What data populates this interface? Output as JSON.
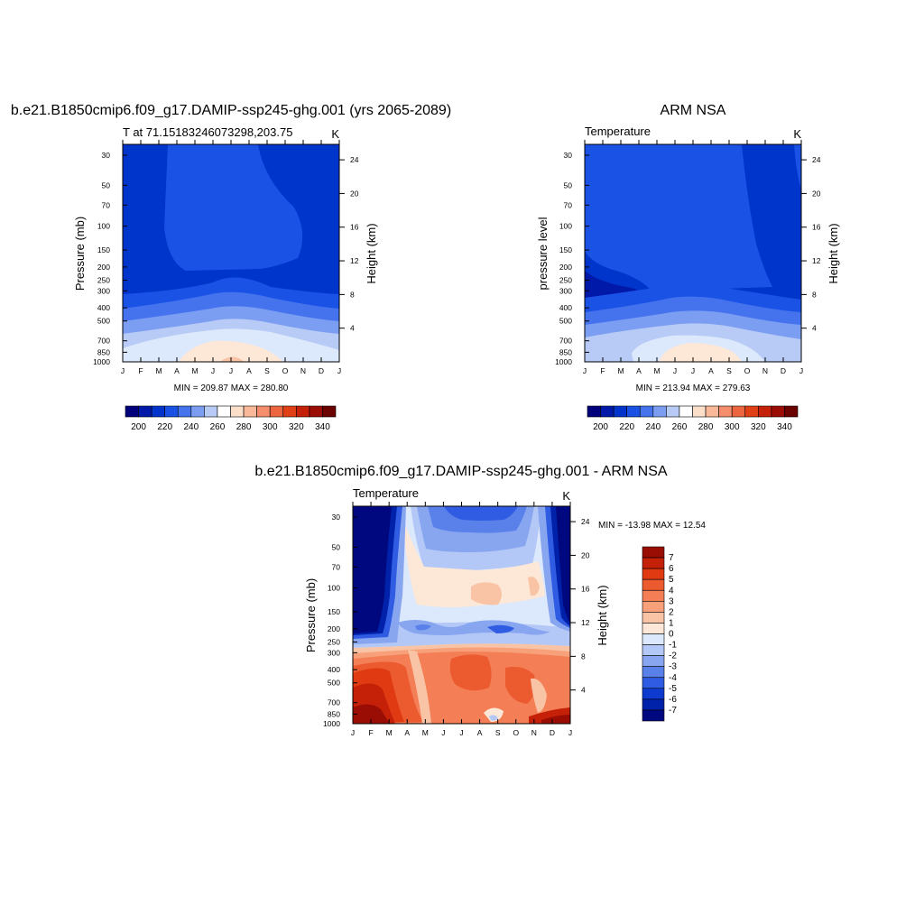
{
  "chart_data": [
    {
      "type": "heatmap",
      "title": "b.e21.B1850cmip6.f09_g17.DAMIP-ssp245-ghg.001 (yrs 2065-2089)",
      "left_label": "T at 71.15183246073298,203.75",
      "right_label": "K",
      "ylabel": "Pressure (mb)",
      "ylabel_right": "Height (km)",
      "x_ticks": [
        "J",
        "F",
        "M",
        "A",
        "M",
        "J",
        "J",
        "A",
        "S",
        "O",
        "N",
        "D",
        "J"
      ],
      "y_ticks": [
        "30",
        "50",
        "70",
        "100",
        "150",
        "200",
        "250",
        "300",
        "400",
        "500",
        "700",
        "850",
        "1000"
      ],
      "y_ticks_right": [
        "24",
        "20",
        "16",
        "12",
        "8",
        "4"
      ],
      "stats": "MIN = 209.87 MAX = 280.80",
      "colorbar_labels": [
        "200",
        "220",
        "240",
        "260",
        "280",
        "300",
        "320",
        "340"
      ],
      "colorbar_colors": [
        "#00007d",
        "#0019a8",
        "#0035cb",
        "#1a52e6",
        "#4573ee",
        "#7c9ef2",
        "#b8cbf6",
        "#ffffff",
        "#fcdfc9",
        "#f9b898",
        "#f48e6c",
        "#ec6640",
        "#df4015",
        "#c52008",
        "#9a0d05",
        "#6a0000"
      ]
    },
    {
      "type": "heatmap",
      "title": "ARM NSA",
      "left_label": "Temperature",
      "right_label": "K",
      "ylabel": "pressure level",
      "ylabel_right": "Height (km)",
      "x_ticks": [
        "J",
        "F",
        "M",
        "A",
        "M",
        "J",
        "J",
        "A",
        "S",
        "O",
        "N",
        "D",
        "J"
      ],
      "y_ticks": [
        "30",
        "50",
        "70",
        "100",
        "150",
        "200",
        "250",
        "300",
        "400",
        "500",
        "700",
        "850",
        "1000"
      ],
      "y_ticks_right": [
        "24",
        "20",
        "16",
        "12",
        "8",
        "4"
      ],
      "stats": "MIN = 213.94 MAX = 279.63",
      "colorbar_labels": [
        "200",
        "220",
        "240",
        "260",
        "280",
        "300",
        "320",
        "340"
      ],
      "colorbar_colors": [
        "#00007d",
        "#0019a8",
        "#0035cb",
        "#1a52e6",
        "#4573ee",
        "#7c9ef2",
        "#b8cbf6",
        "#ffffff",
        "#fcdfc9",
        "#f9b898",
        "#f48e6c",
        "#ec6640",
        "#df4015",
        "#c52008",
        "#9a0d05",
        "#6a0000"
      ]
    },
    {
      "type": "heatmap",
      "title": "b.e21.B1850cmip6.f09_g17.DAMIP-ssp245-ghg.001 - ARM NSA",
      "left_label": "Temperature",
      "right_label": "K",
      "ylabel": "Pressure (mb)",
      "ylabel_right": "Height (km)",
      "x_ticks": [
        "J",
        "F",
        "M",
        "A",
        "M",
        "J",
        "J",
        "A",
        "S",
        "O",
        "N",
        "D",
        "J"
      ],
      "y_ticks": [
        "30",
        "50",
        "70",
        "100",
        "150",
        "200",
        "250",
        "300",
        "400",
        "500",
        "700",
        "850",
        "1000"
      ],
      "y_ticks_right": [
        "24",
        "20",
        "16",
        "12",
        "8",
        "4"
      ],
      "stats": "MIN = -13.98 MAX =  12.54",
      "colorbar_labels": [
        "7",
        "6",
        "5",
        "4",
        "3",
        "2",
        "1",
        "0",
        "-1",
        "-2",
        "-3",
        "-4",
        "-5",
        "-6",
        "-7"
      ],
      "colorbar_colors": [
        "#9a0d05",
        "#c52008",
        "#df3a12",
        "#ec5a30",
        "#f47e55",
        "#f7a07a",
        "#f9c4a6",
        "#fde8d8",
        "#dce8fb",
        "#b3c8f6",
        "#88a6f0",
        "#5a80ea",
        "#2f5ce2",
        "#0d3bd0",
        "#0021a9",
        "#00087f"
      ]
    }
  ]
}
